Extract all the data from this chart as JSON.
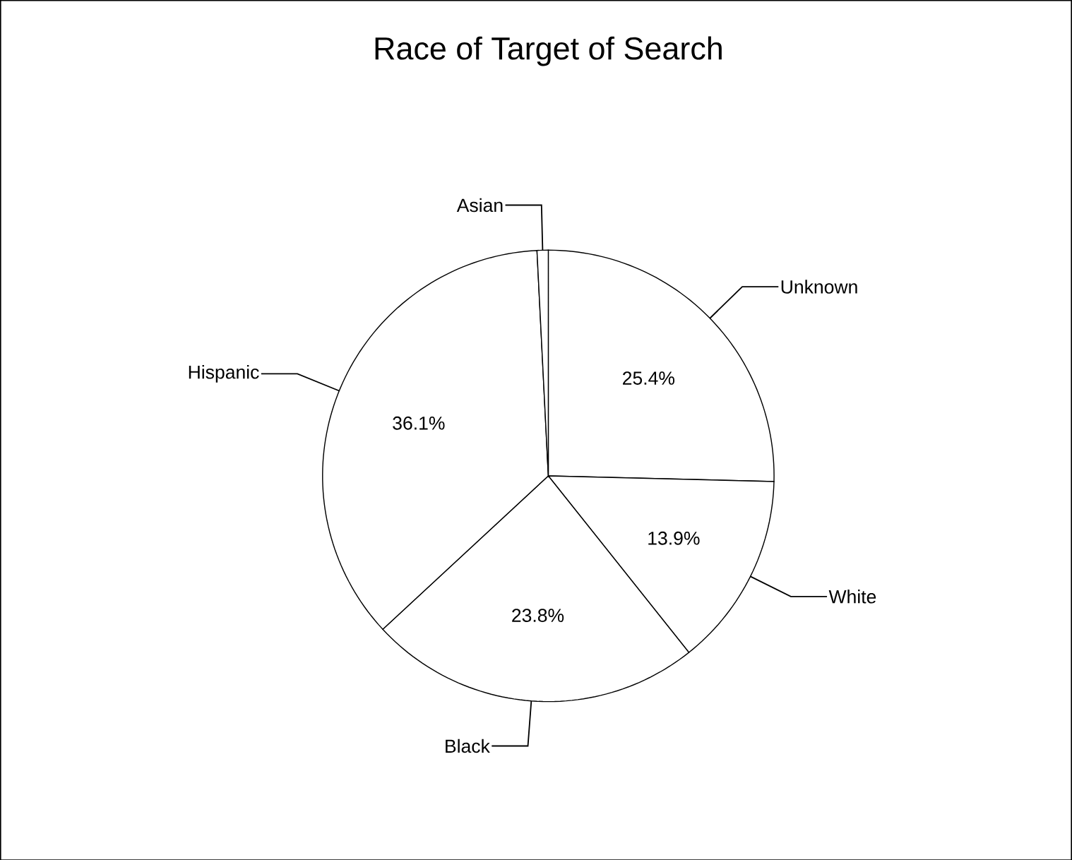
{
  "chart_data": {
    "type": "pie",
    "title": "Race of Target of Search",
    "categories": [
      "Unknown",
      "White",
      "Black",
      "Hispanic",
      "Asian"
    ],
    "values": [
      25.4,
      13.9,
      23.8,
      36.1,
      0.8
    ],
    "value_labels": [
      "25.4%",
      "13.9%",
      "23.8%",
      "36.1%",
      null
    ],
    "colors": [
      "#ffffff",
      "#ffffff",
      "#ffffff",
      "#ffffff",
      "#ffffff"
    ]
  }
}
